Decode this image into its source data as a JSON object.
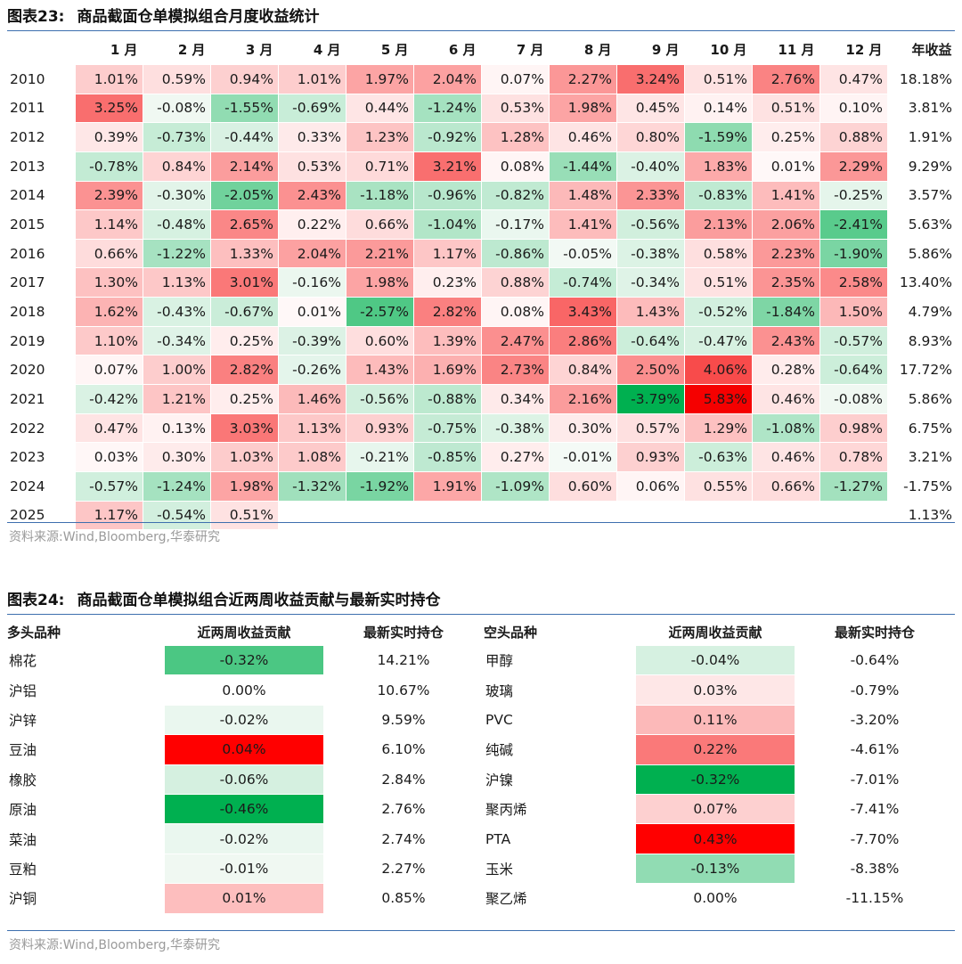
{
  "table1": {
    "title_no": "图表23:",
    "title": "商品截面仓单模拟组合月度收益统计",
    "headers": [
      "1 月",
      "2 月",
      "3 月",
      "4 月",
      "5 月",
      "6 月",
      "7 月",
      "8 月",
      "9 月",
      "10 月",
      "11 月",
      "12 月",
      "年收益"
    ],
    "rows": [
      {
        "year": "2010",
        "months": [
          "1.01%",
          "0.59%",
          "0.94%",
          "1.01%",
          "1.97%",
          "2.04%",
          "0.07%",
          "2.27%",
          "3.24%",
          "0.51%",
          "2.76%",
          "0.47%"
        ],
        "annual": "18.18%"
      },
      {
        "year": "2011",
        "months": [
          "3.25%",
          "-0.08%",
          "-1.55%",
          "-0.69%",
          "0.44%",
          "-1.24%",
          "0.53%",
          "1.98%",
          "0.45%",
          "0.14%",
          "0.51%",
          "0.10%"
        ],
        "annual": "3.81%"
      },
      {
        "year": "2012",
        "months": [
          "0.39%",
          "-0.73%",
          "-0.44%",
          "0.33%",
          "1.23%",
          "-0.92%",
          "1.28%",
          "0.46%",
          "0.80%",
          "-1.59%",
          "0.25%",
          "0.88%"
        ],
        "annual": "1.91%"
      },
      {
        "year": "2013",
        "months": [
          "-0.78%",
          "0.84%",
          "2.14%",
          "0.53%",
          "0.71%",
          "3.21%",
          "0.08%",
          "-1.44%",
          "-0.40%",
          "1.83%",
          "0.01%",
          "2.29%"
        ],
        "annual": "9.29%"
      },
      {
        "year": "2014",
        "months": [
          "2.39%",
          "-0.30%",
          "-2.05%",
          "2.43%",
          "-1.18%",
          "-0.96%",
          "-0.82%",
          "1.48%",
          "2.33%",
          "-0.83%",
          "1.41%",
          "-0.25%"
        ],
        "annual": "3.57%"
      },
      {
        "year": "2015",
        "months": [
          "1.14%",
          "-0.48%",
          "2.65%",
          "0.22%",
          "0.66%",
          "-1.04%",
          "-0.17%",
          "1.41%",
          "-0.56%",
          "2.13%",
          "2.06%",
          "-2.41%"
        ],
        "annual": "5.63%"
      },
      {
        "year": "2016",
        "months": [
          "0.66%",
          "-1.22%",
          "1.33%",
          "2.04%",
          "2.21%",
          "1.17%",
          "-0.86%",
          "-0.05%",
          "-0.38%",
          "0.58%",
          "2.23%",
          "-1.90%"
        ],
        "annual": "5.86%"
      },
      {
        "year": "2017",
        "months": [
          "1.30%",
          "1.13%",
          "3.01%",
          "-0.16%",
          "1.98%",
          "0.23%",
          "0.88%",
          "-0.74%",
          "-0.34%",
          "0.51%",
          "2.35%",
          "2.58%"
        ],
        "annual": "13.40%"
      },
      {
        "year": "2018",
        "months": [
          "1.62%",
          "-0.43%",
          "-0.67%",
          "0.01%",
          "-2.57%",
          "2.82%",
          "0.08%",
          "3.43%",
          "1.43%",
          "-0.52%",
          "-1.84%",
          "1.50%"
        ],
        "annual": "4.79%"
      },
      {
        "year": "2019",
        "months": [
          "1.10%",
          "-0.34%",
          "0.25%",
          "-0.39%",
          "0.60%",
          "1.39%",
          "2.47%",
          "2.86%",
          "-0.64%",
          "-0.47%",
          "2.43%",
          "-0.57%"
        ],
        "annual": "8.93%"
      },
      {
        "year": "2020",
        "months": [
          "0.07%",
          "1.00%",
          "2.82%",
          "-0.26%",
          "1.43%",
          "1.69%",
          "2.73%",
          "0.84%",
          "2.50%",
          "4.06%",
          "0.28%",
          "-0.64%"
        ],
        "annual": "17.72%"
      },
      {
        "year": "2021",
        "months": [
          "-0.42%",
          "1.21%",
          "0.25%",
          "1.46%",
          "-0.56%",
          "-0.88%",
          "0.34%",
          "2.16%",
          "-3.79%",
          "5.83%",
          "0.46%",
          "-0.08%"
        ],
        "annual": "5.86%"
      },
      {
        "year": "2022",
        "months": [
          "0.47%",
          "0.13%",
          "3.03%",
          "1.13%",
          "0.93%",
          "-0.75%",
          "-0.38%",
          "0.30%",
          "0.57%",
          "1.29%",
          "-1.08%",
          "0.98%"
        ],
        "annual": "6.75%"
      },
      {
        "year": "2023",
        "months": [
          "0.03%",
          "0.30%",
          "1.03%",
          "1.08%",
          "-0.21%",
          "-0.85%",
          "0.27%",
          "-0.01%",
          "0.93%",
          "-0.63%",
          "0.46%",
          "0.78%"
        ],
        "annual": "3.21%"
      },
      {
        "year": "2024",
        "months": [
          "-0.57%",
          "-1.24%",
          "1.98%",
          "-1.32%",
          "-1.92%",
          "1.91%",
          "-1.09%",
          "0.60%",
          "0.06%",
          "0.55%",
          "0.66%",
          "-1.27%"
        ],
        "annual": "-1.75%"
      },
      {
        "year": "2025",
        "months": [
          "1.17%",
          "-0.54%",
          "0.51%",
          "",
          "",
          "",
          "",
          "",
          "",
          "",
          "",
          ""
        ],
        "annual": "1.13%"
      }
    ],
    "source": "资料来源:Wind,Bloomberg,华泰研究"
  },
  "table2": {
    "title_no": "图表24:",
    "title": "商品截面仓单模拟组合近两周收益贡献与最新实时持仓",
    "headers": {
      "long_name": "多头品种",
      "long_contrib": "近两周收益贡献",
      "long_pos": "最新实时持仓",
      "short_name": "空头品种",
      "short_contrib": "近两周收益贡献",
      "short_pos": "最新实时持仓"
    },
    "rows": [
      {
        "long": "棉花",
        "long_contrib": "-0.32%",
        "long_pos": "14.21%",
        "short": "甲醇",
        "short_contrib": "-0.04%",
        "short_pos": "-0.64%"
      },
      {
        "long": "沪铝",
        "long_contrib": "0.00%",
        "long_pos": "10.67%",
        "short": "玻璃",
        "short_contrib": "0.03%",
        "short_pos": "-0.79%"
      },
      {
        "long": "沪锌",
        "long_contrib": "-0.02%",
        "long_pos": "9.59%",
        "short": "PVC",
        "short_contrib": "0.11%",
        "short_pos": "-3.20%"
      },
      {
        "long": "豆油",
        "long_contrib": "0.04%",
        "long_pos": "6.10%",
        "short": "纯碱",
        "short_contrib": "0.22%",
        "short_pos": "-4.61%"
      },
      {
        "long": "橡胶",
        "long_contrib": "-0.06%",
        "long_pos": "2.84%",
        "short": "沪镍",
        "short_contrib": "-0.32%",
        "short_pos": "-7.01%"
      },
      {
        "long": "原油",
        "long_contrib": "-0.46%",
        "long_pos": "2.76%",
        "short": "聚丙烯",
        "short_contrib": "0.07%",
        "short_pos": "-7.41%"
      },
      {
        "long": "菜油",
        "long_contrib": "-0.02%",
        "long_pos": "2.74%",
        "short": "PTA",
        "short_contrib": "0.43%",
        "short_pos": "-7.70%"
      },
      {
        "long": "豆粕",
        "long_contrib": "-0.01%",
        "long_pos": "2.27%",
        "short": "玉米",
        "short_contrib": "-0.13%",
        "short_pos": "-8.38%"
      },
      {
        "long": "沪铜",
        "long_contrib": "0.01%",
        "long_pos": "0.85%",
        "short": "聚乙烯",
        "short_contrib": "0.00%",
        "short_pos": "-11.15%"
      }
    ],
    "source": "资料来源:Wind,Bloomberg,华泰研究"
  },
  "colors": {
    "positive": "#f0525a",
    "negative": "#12b04c",
    "rule": "#3d6fae"
  }
}
